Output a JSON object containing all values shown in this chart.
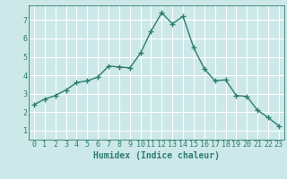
{
  "x": [
    0,
    1,
    2,
    3,
    4,
    5,
    6,
    7,
    8,
    9,
    10,
    11,
    12,
    13,
    14,
    15,
    16,
    17,
    18,
    19,
    20,
    21,
    22,
    23
  ],
  "y": [
    2.4,
    2.7,
    2.9,
    3.2,
    3.6,
    3.7,
    3.9,
    4.5,
    4.45,
    4.4,
    5.2,
    6.4,
    7.4,
    6.8,
    7.2,
    5.5,
    4.35,
    3.7,
    3.75,
    2.9,
    2.85,
    2.1,
    1.7,
    1.25
  ],
  "line_color": "#2e7d6e",
  "marker": "+",
  "marker_size": 4,
  "line_width": 1.0,
  "bg_color": "#cce8e8",
  "grid_color": "#ffffff",
  "xlabel": "Humidex (Indice chaleur)",
  "xlabel_fontsize": 7,
  "tick_color": "#2e7d6e",
  "tick_fontsize": 6,
  "xlim": [
    -0.5,
    23.5
  ],
  "ylim": [
    0.5,
    7.8
  ],
  "yticks": [
    1,
    2,
    3,
    4,
    5,
    6,
    7
  ],
  "xticks": [
    0,
    1,
    2,
    3,
    4,
    5,
    6,
    7,
    8,
    9,
    10,
    11,
    12,
    13,
    14,
    15,
    16,
    17,
    18,
    19,
    20,
    21,
    22,
    23
  ]
}
